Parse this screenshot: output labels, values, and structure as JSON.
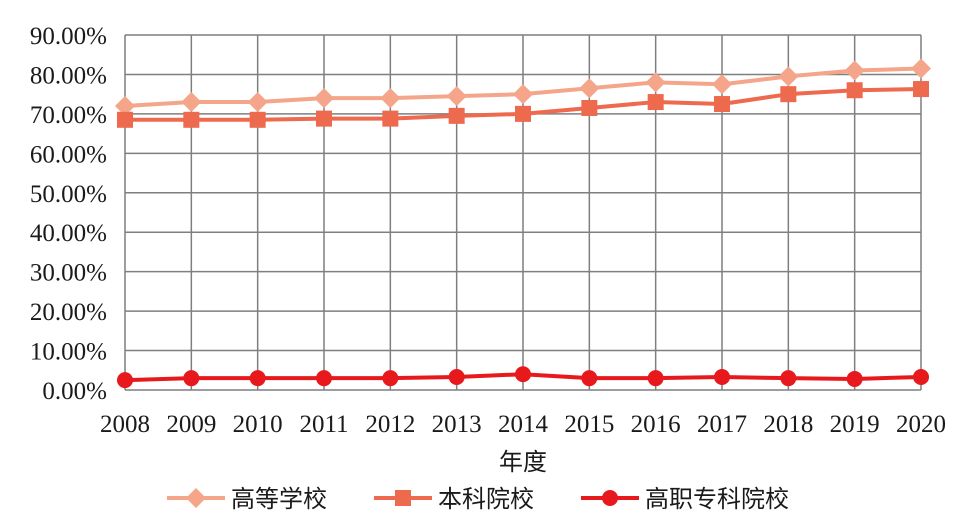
{
  "chart_data": {
    "type": "line",
    "title": "",
    "xlabel": "年度",
    "ylabel": "",
    "categories": [
      "2008",
      "2009",
      "2010",
      "2011",
      "2012",
      "2013",
      "2014",
      "2015",
      "2016",
      "2017",
      "2018",
      "2019",
      "2020"
    ],
    "ylim": [
      0,
      90
    ],
    "yticks": [
      0,
      10,
      20,
      30,
      40,
      50,
      60,
      70,
      80,
      90
    ],
    "ytick_labels": [
      "0.00%",
      "10.00%",
      "20.00%",
      "30.00%",
      "40.00%",
      "50.00%",
      "60.00%",
      "70.00%",
      "80.00%",
      "90.00%"
    ],
    "grid": true,
    "legend_position": "bottom",
    "series": [
      {
        "name": "高等学校",
        "marker": "diamond",
        "color": "#f4a58a",
        "values": [
          72.0,
          73.0,
          73.0,
          74.0,
          74.0,
          74.5,
          75.0,
          76.5,
          78.0,
          77.5,
          79.5,
          81.0,
          81.5
        ]
      },
      {
        "name": "本科院校",
        "marker": "square",
        "color": "#ee6a4e",
        "values": [
          68.5,
          68.5,
          68.5,
          68.8,
          68.8,
          69.5,
          70.0,
          71.5,
          73.0,
          72.5,
          75.0,
          76.0,
          76.3
        ]
      },
      {
        "name": "高职专科院校",
        "marker": "circle",
        "color": "#e8191c",
        "values": [
          2.5,
          3.0,
          3.0,
          3.0,
          3.0,
          3.3,
          4.0,
          3.0,
          3.0,
          3.3,
          3.0,
          2.8,
          3.3
        ]
      }
    ]
  }
}
